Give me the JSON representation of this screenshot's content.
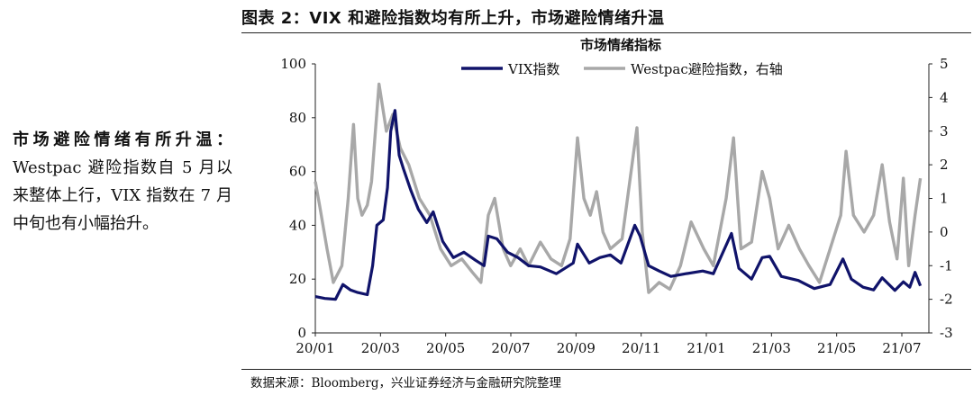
{
  "figure_label": "图表 2：VIX 和避险指数均有所上升，市场避险情绪升温",
  "side_note": {
    "lead": "市场避险情绪有所升温：",
    "body": "Westpac 避险指数自 5 月以来整体上行，VIX 指数在 7 月中旬也有小幅抬升。"
  },
  "source": "数据来源：Bloomberg，兴业证券经济与金融研究院整理",
  "colors": {
    "vix": "#10136a",
    "westpac": "#a8a8a8",
    "axis": "#222222"
  },
  "chart_data": {
    "type": "line",
    "title": "市场情绪指标",
    "x_ticks": [
      "20/01",
      "20/03",
      "20/05",
      "20/07",
      "20/09",
      "20/11",
      "21/01",
      "21/03",
      "21/05",
      "21/07"
    ],
    "x_range": [
      "2020-01-01",
      "2021-08-01"
    ],
    "y_left": {
      "min": 0,
      "max": 100,
      "ticks": [
        0,
        20,
        40,
        60,
        80,
        100
      ]
    },
    "y_right": {
      "min": -3,
      "max": 5,
      "ticks": [
        -3,
        -2,
        -1,
        0,
        1,
        2,
        3,
        4,
        5
      ]
    },
    "legend": {
      "position": "top-center"
    },
    "series": [
      {
        "name": "VIX指数",
        "axis": "left",
        "color": "#10136a",
        "points": [
          [
            "2020-01-01",
            13.5
          ],
          [
            "2020-01-10",
            12.8
          ],
          [
            "2020-01-20",
            12.5
          ],
          [
            "2020-01-27",
            18.0
          ],
          [
            "2020-02-03",
            16.0
          ],
          [
            "2020-02-10",
            15.0
          ],
          [
            "2020-02-19",
            14.2
          ],
          [
            "2020-02-24",
            25.0
          ],
          [
            "2020-02-28",
            40.0
          ],
          [
            "2020-03-05",
            42.0
          ],
          [
            "2020-03-09",
            54.0
          ],
          [
            "2020-03-12",
            75.0
          ],
          [
            "2020-03-16",
            82.7
          ],
          [
            "2020-03-20",
            66.0
          ],
          [
            "2020-03-24",
            61.0
          ],
          [
            "2020-03-31",
            53.0
          ],
          [
            "2020-04-07",
            46.0
          ],
          [
            "2020-04-15",
            41.0
          ],
          [
            "2020-04-21",
            45.0
          ],
          [
            "2020-04-30",
            34.0
          ],
          [
            "2020-05-10",
            28.0
          ],
          [
            "2020-05-20",
            30.0
          ],
          [
            "2020-05-31",
            27.0
          ],
          [
            "2020-06-08",
            25.0
          ],
          [
            "2020-06-12",
            36.0
          ],
          [
            "2020-06-20",
            35.0
          ],
          [
            "2020-06-30",
            30.0
          ],
          [
            "2020-07-10",
            28.0
          ],
          [
            "2020-07-20",
            25.0
          ],
          [
            "2020-07-31",
            24.5
          ],
          [
            "2020-08-15",
            22.0
          ],
          [
            "2020-08-31",
            26.0
          ],
          [
            "2020-09-04",
            33.0
          ],
          [
            "2020-09-15",
            26.0
          ],
          [
            "2020-09-25",
            28.0
          ],
          [
            "2020-10-05",
            29.0
          ],
          [
            "2020-10-15",
            26.0
          ],
          [
            "2020-10-28",
            40.0
          ],
          [
            "2020-11-02",
            36.0
          ],
          [
            "2020-11-10",
            25.0
          ],
          [
            "2020-11-20",
            23.0
          ],
          [
            "2020-12-01",
            21.0
          ],
          [
            "2020-12-15",
            22.0
          ],
          [
            "2020-12-31",
            23.0
          ],
          [
            "2021-01-10",
            22.0
          ],
          [
            "2021-01-27",
            37.0
          ],
          [
            "2021-02-03",
            24.0
          ],
          [
            "2021-02-15",
            20.0
          ],
          [
            "2021-02-25",
            28.0
          ],
          [
            "2021-03-04",
            28.5
          ],
          [
            "2021-03-15",
            21.0
          ],
          [
            "2021-03-31",
            19.5
          ],
          [
            "2021-04-15",
            16.5
          ],
          [
            "2021-04-30",
            18.0
          ],
          [
            "2021-05-12",
            27.5
          ],
          [
            "2021-05-20",
            20.0
          ],
          [
            "2021-05-31",
            17.0
          ],
          [
            "2021-06-10",
            16.0
          ],
          [
            "2021-06-18",
            20.5
          ],
          [
            "2021-06-30",
            15.8
          ],
          [
            "2021-07-08",
            19.0
          ],
          [
            "2021-07-14",
            17.0
          ],
          [
            "2021-07-19",
            22.5
          ],
          [
            "2021-07-24",
            17.5
          ]
        ]
      },
      {
        "name": "Westpac避险指数，右轴",
        "axis": "right",
        "color": "#a8a8a8",
        "points": [
          [
            "2020-01-01",
            1.5
          ],
          [
            "2020-01-05",
            0.8
          ],
          [
            "2020-01-12",
            -0.5
          ],
          [
            "2020-01-18",
            -1.5
          ],
          [
            "2020-01-26",
            -1.0
          ],
          [
            "2020-02-01",
            1.0
          ],
          [
            "2020-02-06",
            3.2
          ],
          [
            "2020-02-10",
            1.0
          ],
          [
            "2020-02-14",
            0.5
          ],
          [
            "2020-02-19",
            0.8
          ],
          [
            "2020-02-23",
            1.5
          ],
          [
            "2020-03-01",
            4.4
          ],
          [
            "2020-03-08",
            3.0
          ],
          [
            "2020-03-14",
            3.5
          ],
          [
            "2020-03-21",
            2.5
          ],
          [
            "2020-03-29",
            2.0
          ],
          [
            "2020-04-08",
            1.0
          ],
          [
            "2020-04-18",
            0.5
          ],
          [
            "2020-04-28",
            -0.5
          ],
          [
            "2020-05-08",
            -1.0
          ],
          [
            "2020-05-18",
            -0.8
          ],
          [
            "2020-05-28",
            -1.2
          ],
          [
            "2020-06-05",
            -1.5
          ],
          [
            "2020-06-12",
            0.5
          ],
          [
            "2020-06-18",
            1.0
          ],
          [
            "2020-06-26",
            -0.5
          ],
          [
            "2020-07-03",
            -1.0
          ],
          [
            "2020-07-12",
            -0.5
          ],
          [
            "2020-07-20",
            -1.0
          ],
          [
            "2020-07-31",
            -0.3
          ],
          [
            "2020-08-10",
            -0.8
          ],
          [
            "2020-08-20",
            -1.0
          ],
          [
            "2020-08-28",
            -0.2
          ],
          [
            "2020-09-04",
            2.8
          ],
          [
            "2020-09-10",
            1.0
          ],
          [
            "2020-09-16",
            0.5
          ],
          [
            "2020-09-22",
            1.2
          ],
          [
            "2020-09-28",
            0.0
          ],
          [
            "2020-10-05",
            -0.5
          ],
          [
            "2020-10-16",
            -0.2
          ],
          [
            "2020-10-30",
            3.1
          ],
          [
            "2020-11-04",
            0.0
          ],
          [
            "2020-11-10",
            -1.8
          ],
          [
            "2020-11-20",
            -1.5
          ],
          [
            "2020-11-30",
            -1.7
          ],
          [
            "2020-12-10",
            -1.0
          ],
          [
            "2020-12-20",
            0.3
          ],
          [
            "2021-01-01",
            -0.5
          ],
          [
            "2021-01-10",
            -1.0
          ],
          [
            "2021-01-22",
            1.0
          ],
          [
            "2021-01-29",
            2.8
          ],
          [
            "2021-02-05",
            -0.5
          ],
          [
            "2021-02-15",
            -0.3
          ],
          [
            "2021-02-25",
            1.8
          ],
          [
            "2021-03-04",
            1.0
          ],
          [
            "2021-03-12",
            -0.5
          ],
          [
            "2021-03-22",
            0.2
          ],
          [
            "2021-04-01",
            -0.5
          ],
          [
            "2021-04-10",
            -1.0
          ],
          [
            "2021-04-20",
            -1.5
          ],
          [
            "2021-04-30",
            -0.5
          ],
          [
            "2021-05-10",
            0.5
          ],
          [
            "2021-05-15",
            2.4
          ],
          [
            "2021-05-22",
            0.5
          ],
          [
            "2021-06-01",
            0.0
          ],
          [
            "2021-06-10",
            0.5
          ],
          [
            "2021-06-18",
            2.0
          ],
          [
            "2021-06-25",
            0.3
          ],
          [
            "2021-07-02",
            -0.8
          ],
          [
            "2021-07-08",
            1.6
          ],
          [
            "2021-07-13",
            -1.0
          ],
          [
            "2021-07-19",
            0.5
          ],
          [
            "2021-07-24",
            1.6
          ]
        ]
      }
    ]
  }
}
